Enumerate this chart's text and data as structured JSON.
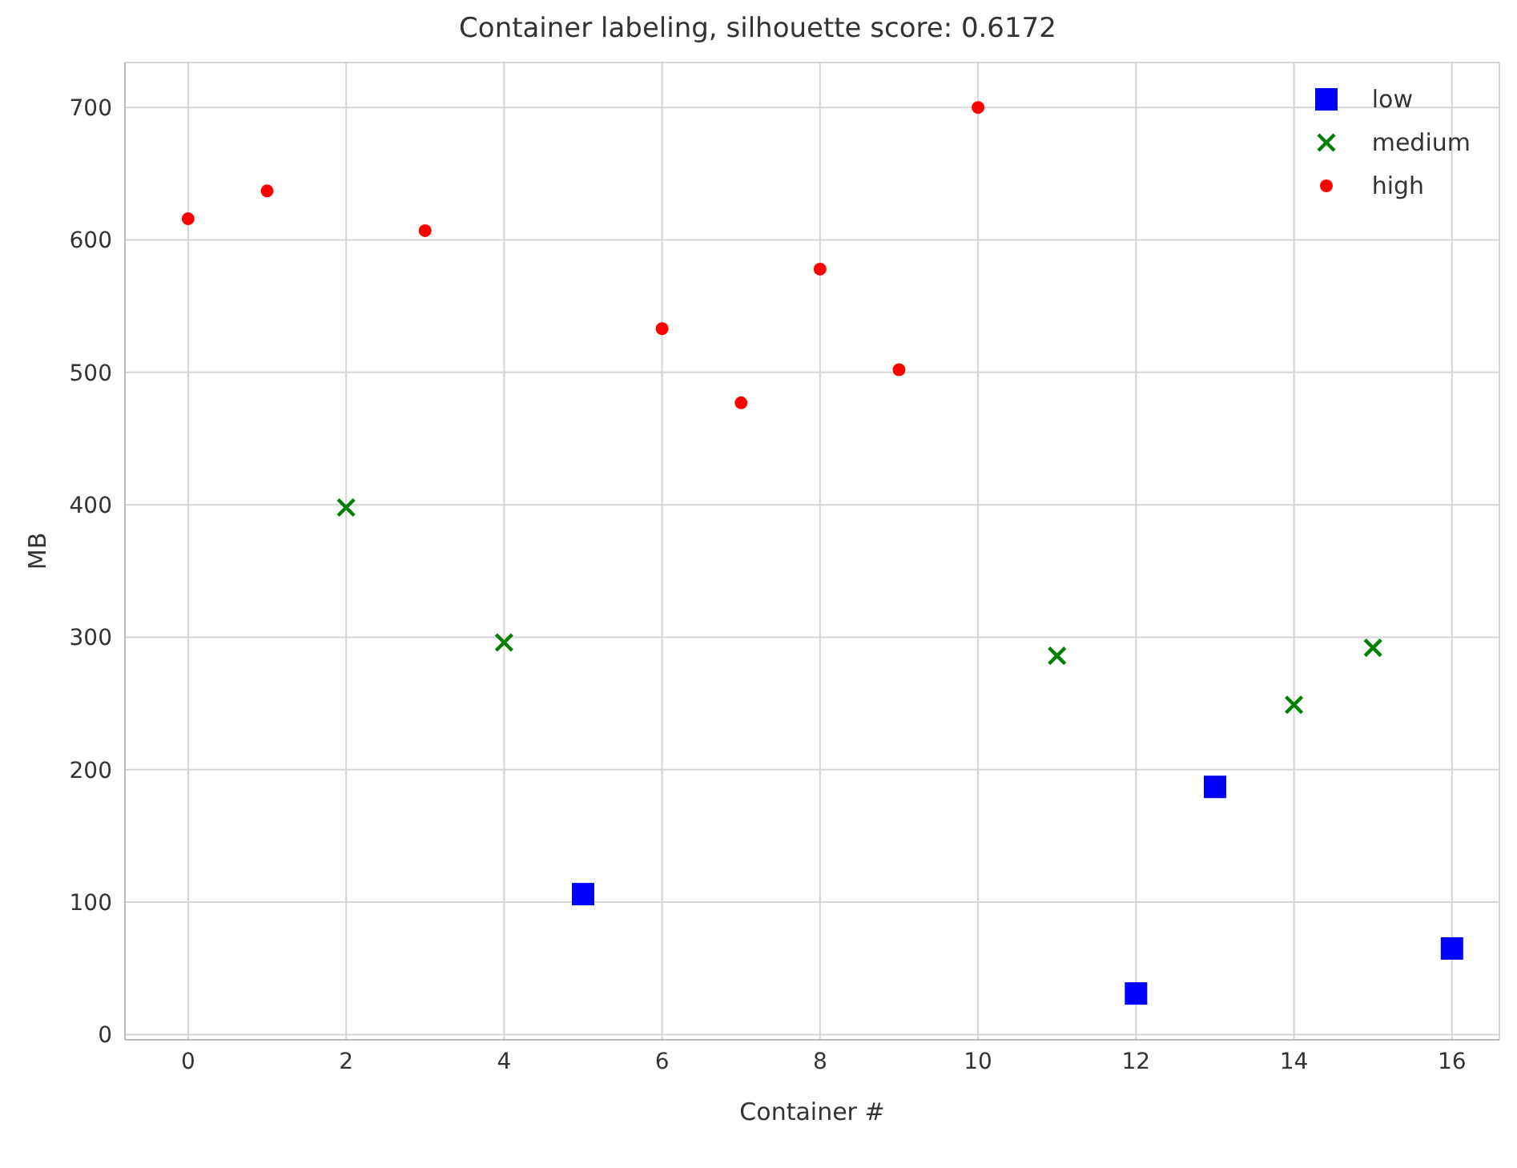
{
  "chart_data": {
    "type": "scatter",
    "title": "Container labeling, silhouette score: 0.6172",
    "xlabel": "Container #",
    "ylabel": "MB",
    "xlim": [
      -0.8,
      16.6
    ],
    "xticks": [
      0,
      2,
      4,
      6,
      8,
      10,
      12,
      14,
      16
    ],
    "ylim": [
      -4,
      734
    ],
    "yticks": [
      0,
      100,
      200,
      300,
      400,
      500,
      600,
      700
    ],
    "grid": true,
    "legend": "top right",
    "series": [
      {
        "name": "low",
        "color": "#0000ff",
        "marker": "square",
        "x": [
          5,
          12,
          13,
          16
        ],
        "values": [
          106,
          31,
          187,
          65
        ]
      },
      {
        "name": "medium",
        "color": "#008000",
        "marker": "cross",
        "x": [
          2,
          4,
          11,
          14,
          15
        ],
        "values": [
          398,
          296,
          286,
          249,
          292
        ]
      },
      {
        "name": "high",
        "color": "#ff0000",
        "marker": "circle",
        "x": [
          0,
          1,
          3,
          6,
          7,
          8,
          9,
          10
        ],
        "values": [
          616,
          637,
          607,
          533,
          477,
          578,
          502,
          700
        ]
      }
    ]
  }
}
